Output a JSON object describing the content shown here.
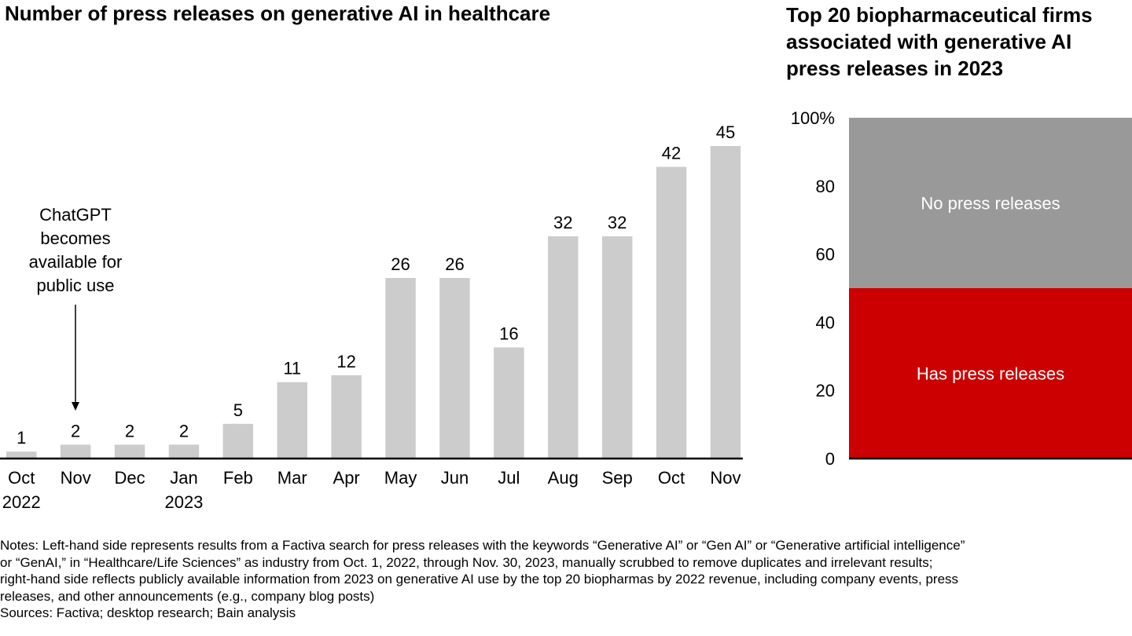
{
  "left_title": "Number of press releases on generative AI in healthcare",
  "right_title_lines": [
    "Top 20 biopharmaceutical firms",
    "associated with generative AI",
    "press releases in 2023"
  ],
  "annotation_lines": [
    "ChatGPT",
    "becomes",
    "available for",
    "public use"
  ],
  "notes_lines": [
    "Notes: Left-hand side represents results from a Factiva search for press releases with the keywords “Generative AI” or “Gen AI” or “Generative artificial intelligence”",
    "or “GenAI,” in “Healthcare/Life Sciences” as industry from Oct. 1, 2022, through Nov. 30, 2023, manually scrubbed to remove duplicates and irrelevant results;",
    "right-hand side reflects publicly available information from 2023 on generative AI use by the top 20 biopharmas by 2022 revenue, including company events, press",
    "releases, and other announcements (e.g., company blog posts)"
  ],
  "sources": "Sources: Factiva; desktop research; Bain analysis",
  "colors": {
    "bar": "#cccccc",
    "no_press": "#999999",
    "has_press": "#cc0000",
    "axis": "#000000"
  },
  "chart_data": [
    {
      "type": "bar",
      "title": "Number of press releases on generative AI in healthcare",
      "categories": [
        [
          "Oct",
          "2022"
        ],
        [
          "Nov"
        ],
        [
          "Dec"
        ],
        [
          "Jan",
          "2023"
        ],
        [
          "Feb"
        ],
        [
          "Mar"
        ],
        [
          "Apr"
        ],
        [
          "May"
        ],
        [
          "Jun"
        ],
        [
          "Jul"
        ],
        [
          "Aug"
        ],
        [
          "Sep"
        ],
        [
          "Oct"
        ],
        [
          "Nov"
        ]
      ],
      "values": [
        1,
        2,
        2,
        2,
        5,
        11,
        12,
        26,
        26,
        16,
        32,
        32,
        42,
        45
      ],
      "ylim": [
        0,
        45
      ],
      "annotation": {
        "category_index": 1,
        "text": "ChatGPT becomes available for public use"
      }
    },
    {
      "type": "bar",
      "stacked": true,
      "title": "Top 20 biopharmaceutical firms associated with generative AI press releases in 2023",
      "yticks": [
        "0",
        "20",
        "40",
        "60",
        "80",
        "100%"
      ],
      "ylim": [
        0,
        100
      ],
      "segments": [
        {
          "name": "Has press releases",
          "value": 50
        },
        {
          "name": "No press releases",
          "value": 50
        }
      ]
    }
  ]
}
